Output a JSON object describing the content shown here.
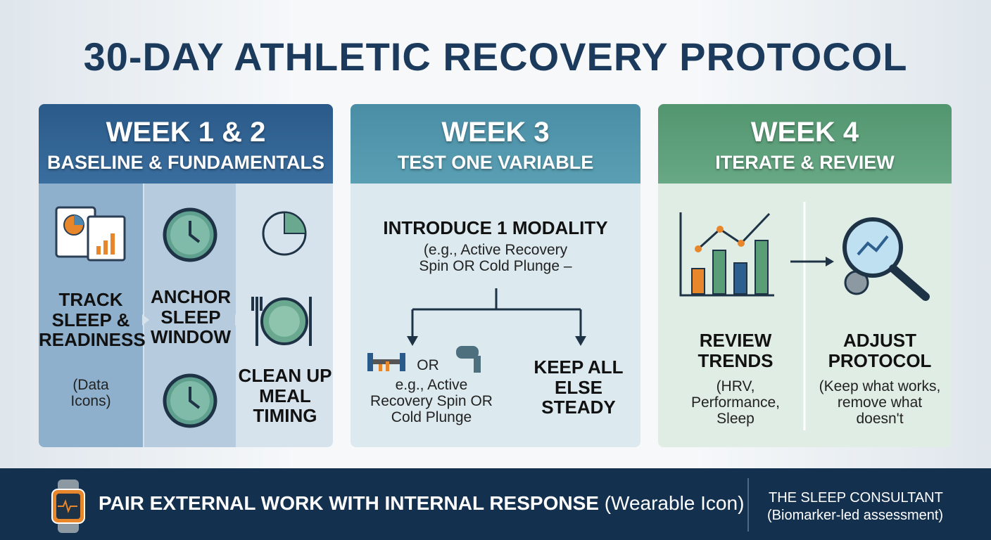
{
  "title": "30-DAY ATHLETIC RECOVERY PROTOCOL",
  "weeks": [
    {
      "heading": "WEEK 1 & 2",
      "subheading": "BASELINE & FUNDAMENTALS",
      "steps": [
        {
          "label": "TRACK SLEEP & READINESS",
          "note": "(Data Icons)"
        },
        {
          "label": "ANCHOR SLEEP WINDOW"
        },
        {
          "label": "CLEAN UP MEAL TIMING"
        }
      ]
    },
    {
      "heading": "WEEK 3",
      "subheading": "TEST ONE VARIABLE",
      "main": "INTRODUCE 1 MODALITY",
      "detail": "(e.g., Active Recovery Spin OR Cold Plunge –",
      "left_or": "OR",
      "left_detail": "e.g., Active Recovery Spin OR Cold Plunge",
      "right": "KEEP ALL ELSE STEADY"
    },
    {
      "heading": "WEEK 4",
      "subheading": "ITERATE & REVIEW",
      "steps": [
        {
          "label": "REVIEW TRENDS",
          "note": "(HRV, Performance, Sleep"
        },
        {
          "label": "ADJUST PROTOCOL",
          "note": "(Keep what works, remove what doesn't"
        }
      ]
    }
  ],
  "footer": {
    "message": "PAIR EXTERNAL WORK WITH INTERNAL RESPONSE",
    "message_note": "(Wearable Icon)",
    "brand": "THE SLEEP CONSULTANT",
    "brand_note": "(Biomarker-led assessment)"
  }
}
